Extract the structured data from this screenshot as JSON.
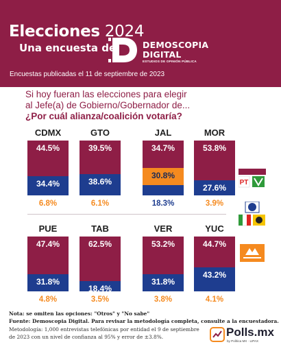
{
  "header": {
    "title_bold": "Elecciones",
    "title_year": "2024",
    "subtitle": "Una encuesta de:",
    "logo_line1": "DEMOSCOPIA",
    "logo_line2": "DIGITAL",
    "logo_tagline": "ESTUDIOS DE OPINIÓN PÚBLICA",
    "pub_date": "Encuestas publicadas el 11 de septiembre de 2023"
  },
  "question": {
    "line1": "Si hoy fueran las elecciones para elegir",
    "line2": "al Jefe(a) de Gobierno/Gobernador de...",
    "line3": "¿Por cuál alianza/coalición votaría?"
  },
  "colors": {
    "morena": "#8e1e46",
    "pri_pan_prd": "#1e3d8f",
    "mc": "#f58a1f",
    "header_bg": "#8e1e46"
  },
  "legend": [
    {
      "name": "PT-MORENA-VERDE",
      "icon": "pt-morena-verde-logos"
    },
    {
      "name": "PAN-PRI-PRD",
      "icon": "pan-pri-prd-logos"
    },
    {
      "name": "MOVIMIENTO CIUDADANO",
      "icon": "movimiento-ciudadano-logo"
    }
  ],
  "chart_data": {
    "type": "bar",
    "stacked": true,
    "unit": "%",
    "categories": [
      "CDMX",
      "GTO",
      "JAL",
      "MOR",
      "PUE",
      "TAB",
      "VER",
      "YUC"
    ],
    "series": [
      {
        "key": "morena",
        "values": [
          44.5,
          39.5,
          34.7,
          53.8,
          47.4,
          62.5,
          53.2,
          44.7
        ],
        "labels": [
          "44.5%",
          "39.5%",
          "34.7%",
          "53.8%",
          "47.4%",
          "62.5%",
          "53.2%",
          "44.7%"
        ]
      },
      {
        "key": "pri_pan_prd",
        "values": [
          34.4,
          38.6,
          18.3,
          27.6,
          31.8,
          18.4,
          31.8,
          43.2
        ],
        "labels": [
          "34.4%",
          "38.6%",
          "18.3%",
          "27.6%",
          "31.8%",
          "18.4%",
          "31.8%",
          "43.2%"
        ]
      },
      {
        "key": "mc",
        "values": [
          6.8,
          6.1,
          30.8,
          3.9,
          4.8,
          3.5,
          3.8,
          4.1
        ],
        "labels": [
          "6.8%",
          "6.1%",
          "30.8%",
          "3.9%",
          "4.8%",
          "3.5%",
          "3.8%",
          "4.1%"
        ]
      }
    ]
  },
  "footer": {
    "note": "Nota: se omiten las opciones: \"Otros\" y \"No sabe\"",
    "source": "Fuente: Demoscopia Digital. Para revisar la metodología completa, consulte a la encuestadora.",
    "method1": "Metodología: 1,000 entrevistas telefónicas por entidad el 9 de septiembre",
    "method2": "de 2023 con un nivel de confianza al 95% y error de ±3.8%.",
    "brand": "Polls.mx",
    "brand_sub": "by Política MX · LIPAX"
  }
}
